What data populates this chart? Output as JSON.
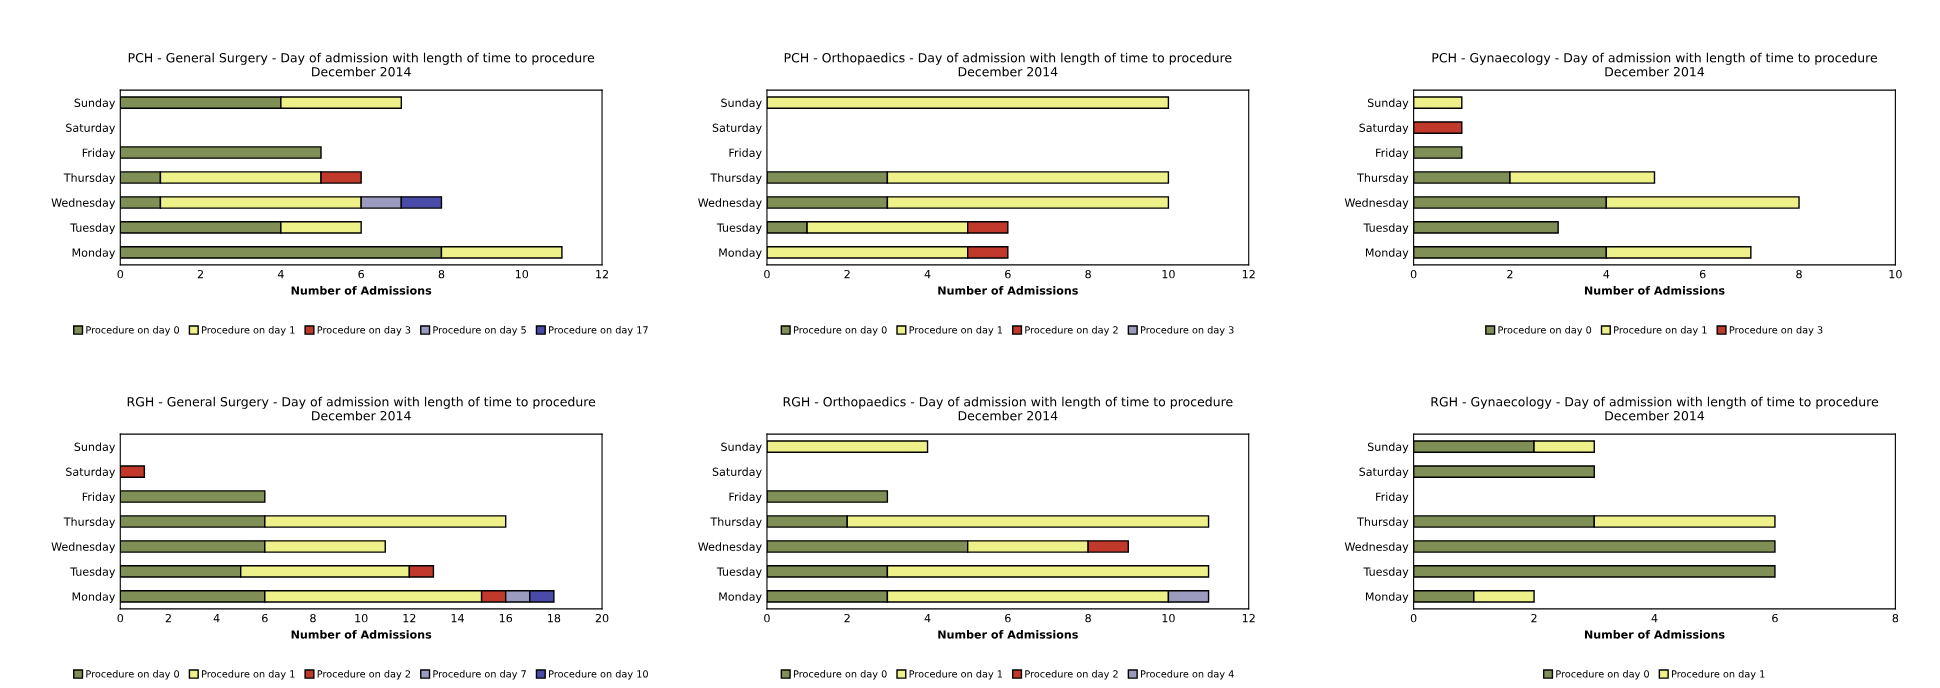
{
  "chart_data": [
    {
      "type": "bar",
      "orientation": "horizontal",
      "stacked": true,
      "title": "PCH - General Surgery - Day of admission with length of time to procedure",
      "subtitle": "December 2014",
      "xlabel": "Number of Admissions",
      "categories": [
        "Sunday",
        "Saturday",
        "Friday",
        "Thursday",
        "Wednesday",
        "Tuesday",
        "Monday"
      ],
      "xlim": [
        0,
        12
      ],
      "xticks": [
        0,
        2,
        4,
        6,
        8,
        10,
        12
      ],
      "grid": false,
      "legend": "bottom",
      "series": [
        {
          "name": "Procedure on day 0",
          "color": "#7f8f55",
          "values": [
            4,
            null,
            5,
            1,
            1,
            4,
            8
          ]
        },
        {
          "name": "Procedure on day 1",
          "color": "#eef08a",
          "values": [
            3,
            null,
            null,
            4,
            5,
            2,
            3
          ]
        },
        {
          "name": "Procedure on day 3",
          "color": "#c0392b",
          "values": [
            null,
            null,
            null,
            1,
            null,
            null,
            null
          ]
        },
        {
          "name": "Procedure on day 5",
          "color": "#9b9bc0",
          "values": [
            null,
            null,
            null,
            null,
            1,
            null,
            null
          ]
        },
        {
          "name": "Procedure on day 17",
          "color": "#4a4aa8",
          "values": [
            null,
            null,
            null,
            null,
            1,
            null,
            null
          ]
        }
      ]
    },
    {
      "type": "bar",
      "orientation": "horizontal",
      "stacked": true,
      "title": "PCH - Orthopaedics - Day of admission with length of time to procedure",
      "subtitle": "December 2014",
      "xlabel": "Number of Admissions",
      "categories": [
        "Sunday",
        "Saturday",
        "Friday",
        "Thursday",
        "Wednesday",
        "Tuesday",
        "Monday"
      ],
      "xlim": [
        0,
        12
      ],
      "xticks": [
        0,
        2,
        4,
        6,
        8,
        10,
        12
      ],
      "grid": false,
      "legend": "bottom",
      "series": [
        {
          "name": "Procedure on day 0",
          "color": "#7f8f55",
          "values": [
            null,
            null,
            null,
            3,
            3,
            1,
            null
          ]
        },
        {
          "name": "Procedure on day 1",
          "color": "#eef08a",
          "values": [
            10,
            null,
            null,
            7,
            7,
            4,
            5
          ]
        },
        {
          "name": "Procedure on day 2",
          "color": "#c0392b",
          "values": [
            null,
            null,
            null,
            null,
            null,
            1,
            1
          ]
        },
        {
          "name": "Procedure on day 3",
          "color": "#9b9bc0",
          "values": [
            null,
            null,
            null,
            null,
            null,
            null,
            null
          ]
        }
      ]
    },
    {
      "type": "bar",
      "orientation": "horizontal",
      "stacked": true,
      "title": "PCH - Gynaecology - Day of admission with length of time to procedure",
      "subtitle": "December 2014",
      "xlabel": "Number of Admissions",
      "categories": [
        "Sunday",
        "Saturday",
        "Friday",
        "Thursday",
        "Wednesday",
        "Tuesday",
        "Monday"
      ],
      "xlim": [
        0,
        10
      ],
      "xticks": [
        0,
        2,
        4,
        6,
        8,
        10
      ],
      "grid": false,
      "legend": "bottom",
      "series": [
        {
          "name": "Procedure on day 0",
          "color": "#7f8f55",
          "values": [
            null,
            null,
            1,
            2,
            4,
            3,
            4
          ]
        },
        {
          "name": "Procedure on day 1",
          "color": "#eef08a",
          "values": [
            1,
            null,
            null,
            3,
            4,
            null,
            3
          ]
        },
        {
          "name": "Procedure on day 3",
          "color": "#c0392b",
          "values": [
            null,
            1,
            null,
            null,
            null,
            null,
            null
          ]
        }
      ]
    },
    {
      "type": "bar",
      "orientation": "horizontal",
      "stacked": true,
      "title": "RGH - General Surgery - Day of admission with length of time to procedure",
      "subtitle": "December 2014",
      "xlabel": "Number of Admissions",
      "categories": [
        "Sunday",
        "Saturday",
        "Friday",
        "Thursday",
        "Wednesday",
        "Tuesday",
        "Monday"
      ],
      "xlim": [
        0,
        20
      ],
      "xticks": [
        0,
        2,
        4,
        6,
        8,
        10,
        12,
        14,
        16,
        18,
        20
      ],
      "grid": false,
      "legend": "bottom",
      "series": [
        {
          "name": "Procedure on day 0",
          "color": "#7f8f55",
          "values": [
            null,
            null,
            6,
            6,
            6,
            5,
            6
          ]
        },
        {
          "name": "Procedure on day 1",
          "color": "#eef08a",
          "values": [
            null,
            null,
            null,
            10,
            5,
            7,
            9
          ]
        },
        {
          "name": "Procedure on day 2",
          "color": "#c0392b",
          "values": [
            null,
            1,
            null,
            null,
            null,
            1,
            1
          ]
        },
        {
          "name": "Procedure on day 7",
          "color": "#9b9bc0",
          "values": [
            null,
            null,
            null,
            null,
            null,
            null,
            1
          ]
        },
        {
          "name": "Procedure on day 10",
          "color": "#4a4aa8",
          "values": [
            null,
            null,
            null,
            null,
            null,
            null,
            1
          ]
        }
      ]
    },
    {
      "type": "bar",
      "orientation": "horizontal",
      "stacked": true,
      "title": "RGH - Orthopaedics - Day of admission with length of time to procedure",
      "subtitle": "December 2014",
      "xlabel": "Number of Admissions",
      "categories": [
        "Sunday",
        "Saturday",
        "Friday",
        "Thursday",
        "Wednesday",
        "Tuesday",
        "Monday"
      ],
      "xlim": [
        0,
        12
      ],
      "xticks": [
        0,
        2,
        4,
        6,
        8,
        10,
        12
      ],
      "grid": false,
      "legend": "bottom",
      "series": [
        {
          "name": "Procedure on day 0",
          "color": "#7f8f55",
          "values": [
            null,
            null,
            3,
            2,
            5,
            3,
            3
          ]
        },
        {
          "name": "Procedure on day 1",
          "color": "#eef08a",
          "values": [
            4,
            null,
            null,
            9,
            3,
            8,
            7
          ]
        },
        {
          "name": "Procedure on day 2",
          "color": "#c0392b",
          "values": [
            null,
            null,
            null,
            null,
            1,
            null,
            null
          ]
        },
        {
          "name": "Procedure on day 4",
          "color": "#9b9bc0",
          "values": [
            null,
            null,
            null,
            null,
            null,
            null,
            1
          ]
        }
      ]
    },
    {
      "type": "bar",
      "orientation": "horizontal",
      "stacked": true,
      "title": "RGH - Gynaecology - Day of admission with length of time to procedure",
      "subtitle": "December 2014",
      "xlabel": "Number of Admissions",
      "categories": [
        "Sunday",
        "Saturday",
        "Friday",
        "Thursday",
        "Wednesday",
        "Tuesday",
        "Monday"
      ],
      "xlim": [
        0,
        8
      ],
      "xticks": [
        0,
        2,
        4,
        6,
        8
      ],
      "grid": false,
      "legend": "bottom",
      "series": [
        {
          "name": "Procedure on day 0",
          "color": "#7f8f55",
          "values": [
            2,
            3,
            null,
            3,
            6,
            6,
            1
          ]
        },
        {
          "name": "Procedure on day 1",
          "color": "#eef08a",
          "values": [
            1,
            null,
            null,
            3,
            null,
            null,
            1
          ]
        }
      ]
    }
  ]
}
